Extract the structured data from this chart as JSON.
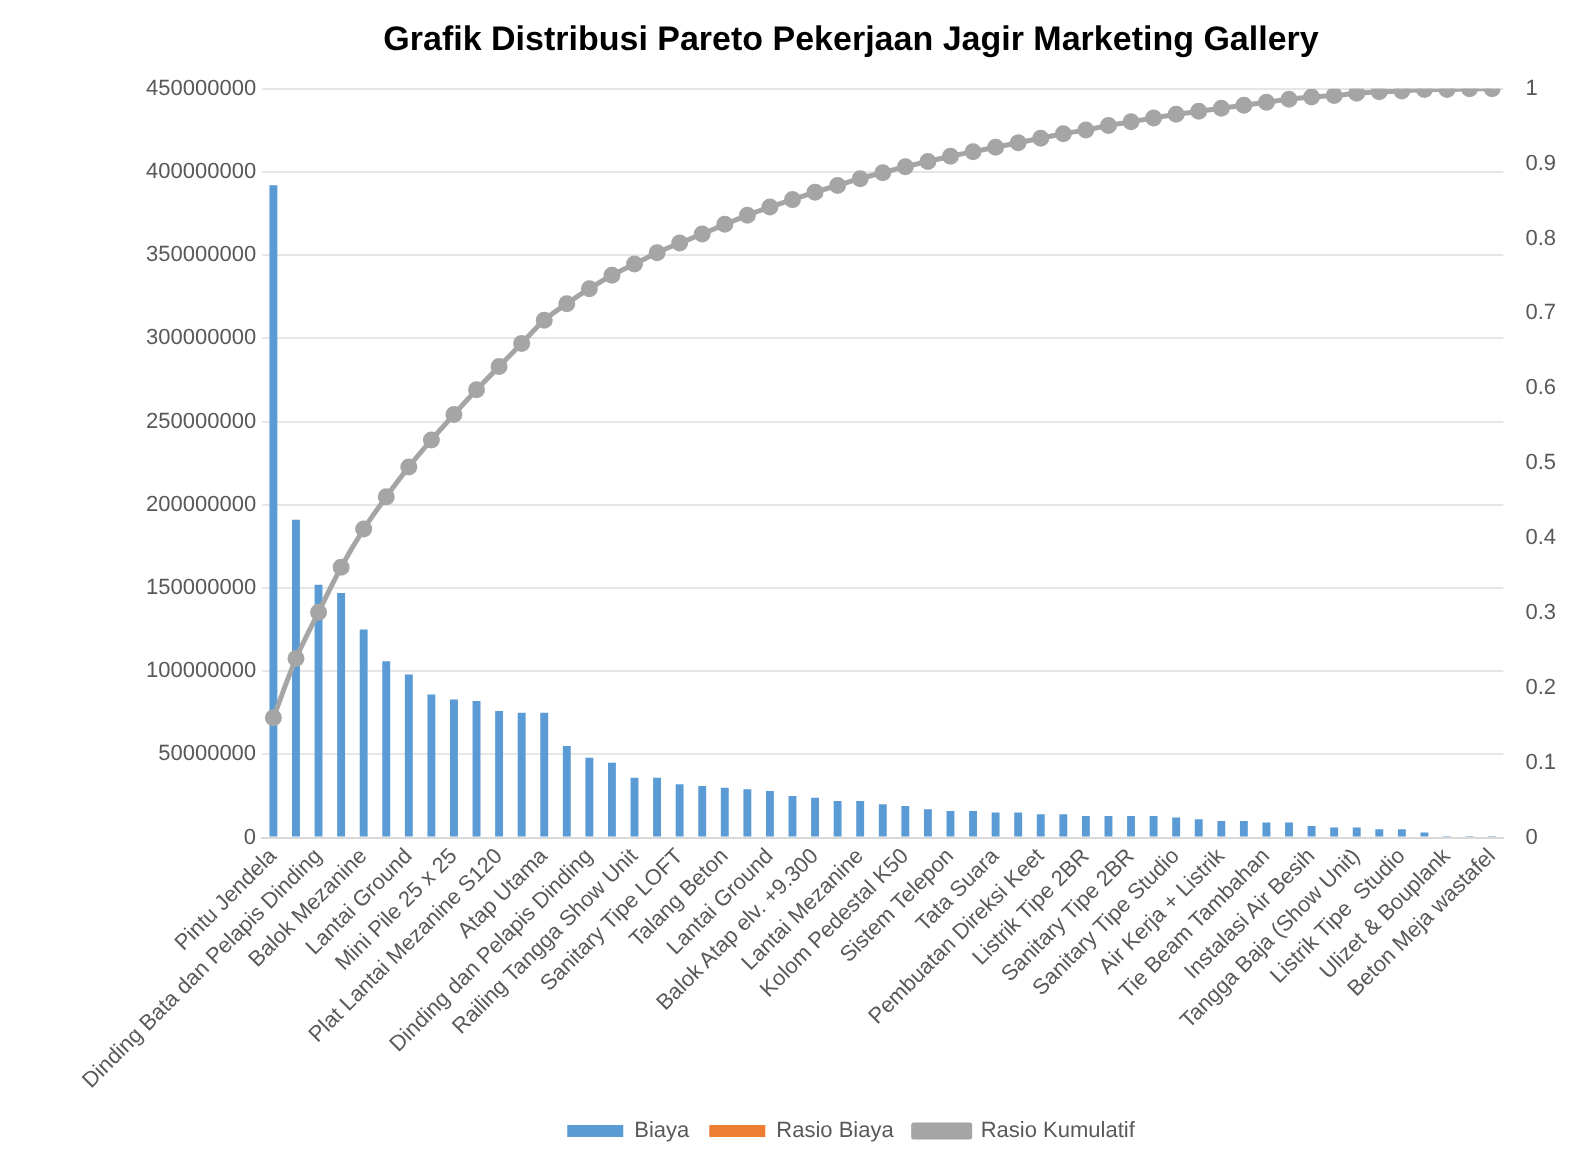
{
  "chart_data": {
    "type": "bar",
    "title": "Grafik Distribusi Pareto Pekerjaan Jagir Marketing Gallery",
    "categories": [
      "Pintu Jendela",
      null,
      "Dinding Bata dan Pelapis Dinding",
      null,
      "Balok Mezanine",
      null,
      "Lantai Ground",
      null,
      "Mini Pile 25 x 25",
      null,
      "Plat Lantai Mezanine S120",
      null,
      "Atap Utama",
      null,
      "Dinding dan Pelapis Dinding",
      null,
      "Railing Tangga Show Unit",
      null,
      "Sanitary Tipe LOFT",
      null,
      "Talang Beton",
      null,
      "Lantai Ground",
      null,
      "Balok Atap elv. +9.300",
      null,
      "Lantai Mezanine",
      null,
      "Kolom Pedestal K50",
      null,
      "Sistem Telepon",
      null,
      "Tata Suara",
      null,
      "Pembuatan Direksi Keet",
      null,
      "Listrik Tipe 2BR",
      null,
      "Sanitary Tipe 2BR",
      null,
      "Sanitary Tipe Studio",
      null,
      "Air Kerja + Listrik",
      null,
      "Tie Beam Tambahan",
      null,
      "Instalasi Air Besih",
      null,
      "Tangga Baja (Show Unit)",
      null,
      "Listrik Tipe  Studio",
      null,
      "Ulizet & Bouplank",
      null,
      "Beton Meja wastafel"
    ],
    "series": [
      {
        "name": "Biaya",
        "color": "#5b9bd5",
        "values": [
          392000000,
          191000000,
          152000000,
          147000000,
          125000000,
          106000000,
          98000000,
          86000000,
          83000000,
          82000000,
          76000000,
          75000000,
          75000000,
          55000000,
          48000000,
          45000000,
          36000000,
          36000000,
          32000000,
          31000000,
          30000000,
          29000000,
          28000000,
          25000000,
          24000000,
          22000000,
          22000000,
          20000000,
          19000000,
          17000000,
          16000000,
          16000000,
          15000000,
          15000000,
          14000000,
          14000000,
          13000000,
          13000000,
          13000000,
          13000000,
          12000000,
          11000000,
          10000000,
          10000000,
          9000000,
          9000000,
          7000000,
          6000000,
          6000000,
          5000000,
          5000000,
          3000000,
          1000000,
          1000000,
          1000000
        ]
      },
      {
        "name": "Rasio Biaya",
        "color": "#ed7d31",
        "values": [
          null,
          null,
          null,
          null,
          null,
          null,
          null,
          null,
          null,
          null,
          null,
          null,
          null,
          null,
          null,
          null,
          null,
          null,
          null,
          null,
          null,
          null,
          null,
          null,
          null,
          null,
          null,
          null,
          null,
          null,
          null,
          null,
          null,
          null,
          null,
          null,
          null,
          null,
          null,
          null,
          null,
          null,
          null,
          null,
          null,
          null,
          null,
          null,
          null,
          null,
          null,
          null,
          null,
          null,
          null
        ]
      },
      {
        "name": "Rasio Kumulatif",
        "type": "line",
        "axis": "y2",
        "color": "#a5a5a5",
        "values": [
          0.16,
          0.239,
          0.301,
          0.361,
          0.412,
          0.455,
          0.495,
          0.531,
          0.565,
          0.598,
          0.629,
          0.66,
          0.691,
          0.713,
          0.733,
          0.751,
          0.766,
          0.781,
          0.794,
          0.806,
          0.819,
          0.831,
          0.842,
          0.852,
          0.862,
          0.871,
          0.88,
          0.888,
          0.896,
          0.903,
          0.91,
          0.916,
          0.922,
          0.928,
          0.934,
          0.94,
          0.945,
          0.951,
          0.956,
          0.961,
          0.966,
          0.97,
          0.974,
          0.978,
          0.982,
          0.986,
          0.989,
          0.991,
          0.994,
          0.996,
          0.997,
          0.999,
          0.999,
          1,
          1
        ]
      }
    ],
    "ylim": [
      0,
      450000000
    ],
    "yticks": [
      0,
      50000000,
      100000000,
      150000000,
      200000000,
      250000000,
      300000000,
      350000000,
      400000000,
      450000000
    ],
    "y2lim": [
      0,
      1
    ],
    "y2ticks": [
      0,
      0.1,
      0.2,
      0.3,
      0.4,
      0.5,
      0.6,
      0.7,
      0.8,
      0.9,
      1
    ],
    "grid": "y",
    "legend": "bottom",
    "marker": "circle",
    "line_style": "solid"
  }
}
